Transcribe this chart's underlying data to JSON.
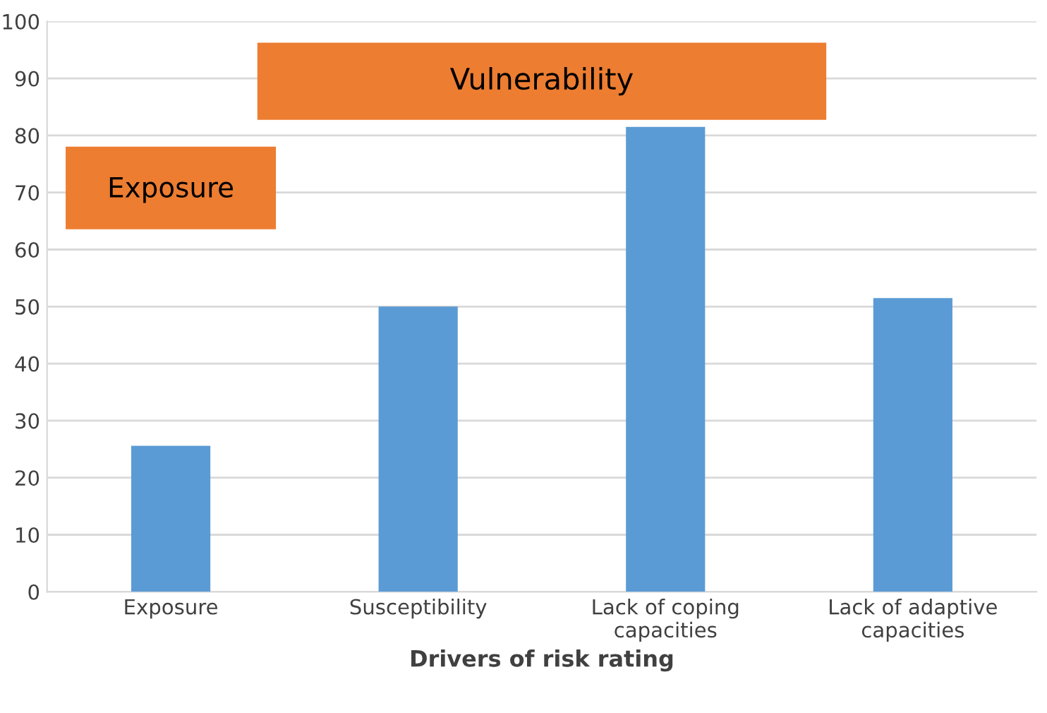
{
  "chart_data": {
    "type": "bar",
    "xlabel": "Drivers of risk rating",
    "categories": [
      "Exposure",
      "Susceptibility",
      "Lack of coping\ncapacities",
      "Lack of adaptive\ncapacities"
    ],
    "values": [
      25.6,
      50,
      81.5,
      51.5
    ],
    "color": "#5b9bd5",
    "ylim": [
      0,
      100
    ],
    "yticks": [
      0,
      10,
      20,
      30,
      40,
      50,
      60,
      70,
      80,
      90,
      100
    ],
    "grid": "y",
    "annotations": [
      "Exposure",
      "Vulnerability"
    ]
  }
}
